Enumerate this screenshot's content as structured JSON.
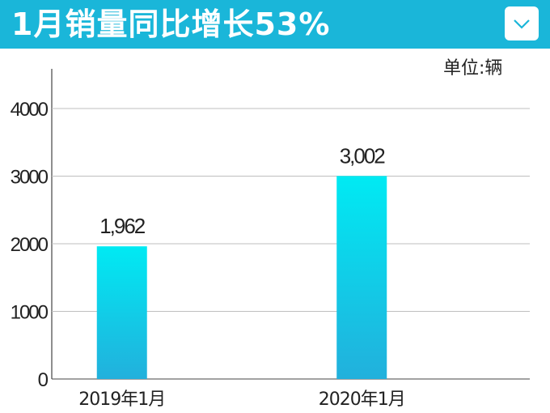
{
  "header": {
    "title": "1月销量同比增长53%",
    "dropdown_icon": "chevron-down-icon",
    "background_color": "#1ab6d9"
  },
  "unit_label": "单位:辆",
  "chart_data": {
    "type": "bar",
    "categories": [
      "2019年1月",
      "2020年1月"
    ],
    "values": [
      1962,
      3002
    ],
    "data_labels": [
      "1,962",
      "3,002"
    ],
    "yticks": [
      0,
      1000,
      2000,
      3000,
      4000
    ],
    "ylim": [
      0,
      4500
    ],
    "grid": true,
    "bar_gradient": [
      "#00eaf3",
      "#22b0dc"
    ],
    "title": "1月销量同比增长53%",
    "xlabel": "",
    "ylabel": ""
  }
}
